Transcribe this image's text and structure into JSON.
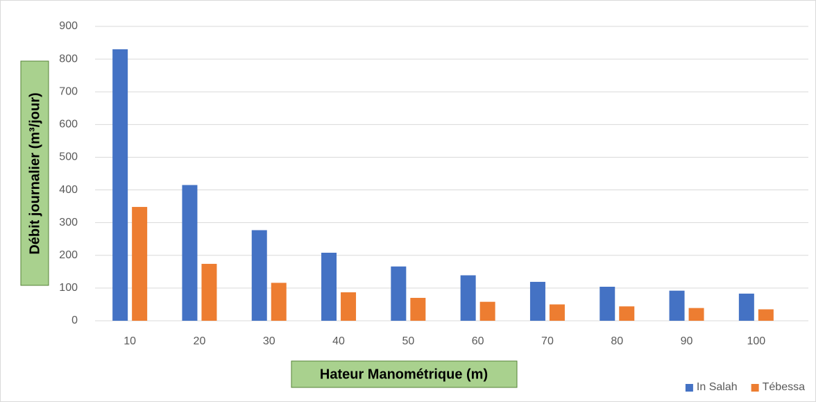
{
  "chart_data": {
    "type": "bar",
    "xlabel": "Hateur Manométrique (m)",
    "ylabel": "Débit journalier (m³/jour)",
    "categories": [
      "10",
      "20",
      "30",
      "40",
      "50",
      "60",
      "70",
      "80",
      "90",
      "100"
    ],
    "series": [
      {
        "name": "In Salah",
        "color": "#4472c4",
        "values": [
          830,
          415,
          277,
          208,
          166,
          139,
          119,
          104,
          92,
          83
        ]
      },
      {
        "name": "Tébessa",
        "color": "#ed7d31",
        "values": [
          348,
          174,
          116,
          87,
          70,
          58,
          50,
          44,
          39,
          35
        ]
      }
    ],
    "ylim": [
      0,
      900
    ],
    "yticks": [
      0,
      100,
      200,
      300,
      400,
      500,
      600,
      700,
      800,
      900
    ],
    "grid": true,
    "legend": "bottom-right"
  }
}
